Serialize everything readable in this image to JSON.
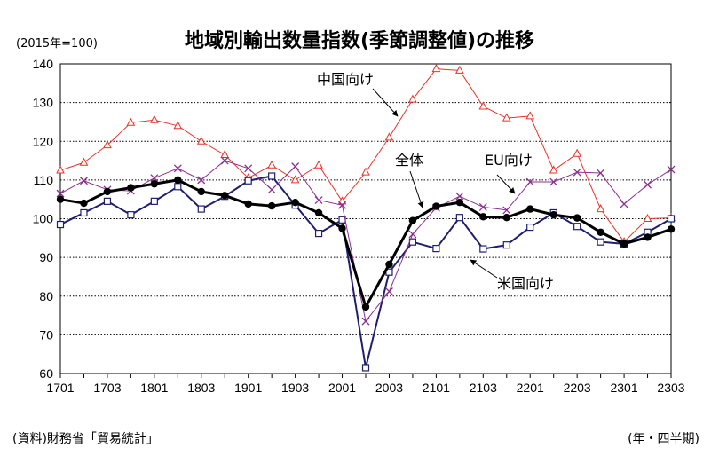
{
  "header": {
    "title": "地域別輸出数量指数(季節調整値)の推移",
    "unit": "(2015年=100)"
  },
  "footer": {
    "source": "(資料)財務省「貿易統計」",
    "period_note": "(年・四半期)"
  },
  "colors": {
    "china": "#e8322a",
    "us": "#1f1f6e",
    "eu": "#8b2f8f",
    "total": "#000000",
    "grid": "#000000"
  },
  "chart_data": {
    "type": "line",
    "x": [
      "1701",
      "1702",
      "1703",
      "1704",
      "1801",
      "1802",
      "1803",
      "1804",
      "1901",
      "1902",
      "1903",
      "1904",
      "2001",
      "2002",
      "2003",
      "2004",
      "2101",
      "2102",
      "2103",
      "2104",
      "2201",
      "2202",
      "2203",
      "2204",
      "2301",
      "2302",
      "2303"
    ],
    "x_tick_labels": [
      "1701",
      "1703",
      "1801",
      "1803",
      "1901",
      "1903",
      "2001",
      "2003",
      "2101",
      "2103",
      "2201",
      "2203",
      "2301",
      "2303"
    ],
    "ylim": [
      60,
      140
    ],
    "y_ticks": [
      60,
      70,
      80,
      90,
      100,
      110,
      120,
      130,
      140
    ],
    "grid": "horizontal dotted",
    "series": [
      {
        "name": "中国向け",
        "marker": "triangle",
        "color_key": "china",
        "values": [
          112.5,
          114.5,
          119,
          124.8,
          125.5,
          124,
          120,
          116.5,
          110.5,
          113.8,
          110,
          113.8,
          104.5,
          112,
          121,
          130.8,
          138.7,
          138.3,
          129,
          126,
          126.5,
          112.5,
          116.8,
          102.5,
          94,
          100,
          100.2
        ]
      },
      {
        "name": "米国向け",
        "marker": "square",
        "color_key": "us",
        "values": [
          98.5,
          101.5,
          104.5,
          101,
          104.5,
          108.3,
          102.5,
          105.8,
          109.8,
          111,
          103.5,
          96.2,
          99.7,
          61.5,
          86.2,
          94,
          92.3,
          100.3,
          92.2,
          93.2,
          97.8,
          101.5,
          98,
          94,
          93.5,
          96.5,
          100
        ]
      },
      {
        "name": "EU向け",
        "marker": "x",
        "color_key": "eu",
        "values": [
          106.5,
          109.8,
          107.5,
          107.2,
          110.5,
          113,
          110,
          115,
          113,
          107.5,
          113.5,
          104.8,
          103.5,
          73.5,
          81.2,
          96,
          102.8,
          105.8,
          103,
          102.2,
          109.5,
          109.5,
          112,
          111.8,
          103.8,
          108.8,
          112.7
        ]
      },
      {
        "name": "全体",
        "marker": "circle",
        "color_key": "total",
        "values": [
          105,
          104,
          107,
          108,
          109,
          110,
          107,
          106,
          103.8,
          103.3,
          104.2,
          101.5,
          97.5,
          77.2,
          88.2,
          99.5,
          103.2,
          104.2,
          100.5,
          100.3,
          102.5,
          101,
          100.2,
          96.5,
          93.5,
          95.2,
          97.3
        ]
      }
    ],
    "annotations": [
      "中国向け",
      "全体",
      "EU向け",
      "米国向け"
    ]
  }
}
